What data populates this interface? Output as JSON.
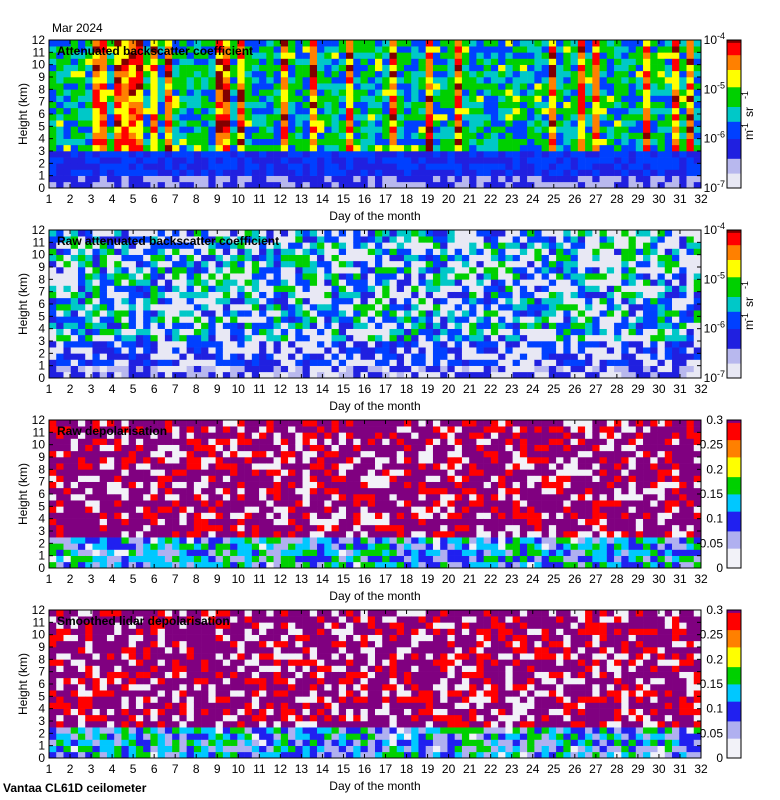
{
  "header": {
    "month": "Mar 2024"
  },
  "footer": {
    "instrument": "Vantaa CL61D ceilometer"
  },
  "chart_data": [
    {
      "type": "heatmap",
      "title": "Attenuated backscatter coefficient",
      "xlabel": "Day of the month",
      "ylabel": "Height (km)",
      "xlim": [
        1,
        32
      ],
      "ylim": [
        0,
        12
      ],
      "x_ticks": [
        "1",
        "2",
        "3",
        "4",
        "5",
        "6",
        "7",
        "8",
        "9",
        "10",
        "11",
        "12",
        "13",
        "14",
        "15",
        "16",
        "17",
        "18",
        "19",
        "20",
        "21",
        "22",
        "23",
        "24",
        "25",
        "26",
        "27",
        "28",
        "29",
        "30",
        "31",
        "32"
      ],
      "y_ticks": [
        "0",
        "1",
        "2",
        "3",
        "4",
        "5",
        "6",
        "7",
        "8",
        "9",
        "10",
        "11",
        "12"
      ],
      "colorbar": {
        "scale": "log",
        "range": [
          1e-07,
          0.0001
        ],
        "tick_mantissa": [
          "10",
          "10",
          "10",
          "10"
        ],
        "tick_exponent": [
          "-7",
          "-6",
          "-5",
          "-4"
        ],
        "unit_base": [
          "m",
          "sr"
        ],
        "unit_exp": [
          "-1",
          "-1"
        ],
        "palette": "jet"
      }
    },
    {
      "type": "heatmap",
      "title": "Raw attenuated backscatter coefficient",
      "xlabel": "Day of the month",
      "ylabel": "Height (km)",
      "xlim": [
        1,
        32
      ],
      "ylim": [
        0,
        12
      ],
      "x_ticks": [
        "1",
        "2",
        "3",
        "4",
        "5",
        "6",
        "7",
        "8",
        "9",
        "10",
        "11",
        "12",
        "13",
        "14",
        "15",
        "16",
        "17",
        "18",
        "19",
        "20",
        "21",
        "22",
        "23",
        "24",
        "25",
        "26",
        "27",
        "28",
        "29",
        "30",
        "31",
        "32"
      ],
      "y_ticks": [
        "0",
        "1",
        "2",
        "3",
        "4",
        "5",
        "6",
        "7",
        "8",
        "9",
        "10",
        "11",
        "12"
      ],
      "colorbar": {
        "scale": "log",
        "range": [
          1e-07,
          0.0001
        ],
        "tick_mantissa": [
          "10",
          "10",
          "10",
          "10"
        ],
        "tick_exponent": [
          "-7",
          "-6",
          "-5",
          "-4"
        ],
        "unit_base": [
          "m",
          "sr"
        ],
        "unit_exp": [
          "-1",
          "-1"
        ],
        "palette": "jet"
      }
    },
    {
      "type": "heatmap",
      "title": "Raw depolarisation",
      "xlabel": "Day of the month",
      "ylabel": "Height (km)",
      "xlim": [
        1,
        32
      ],
      "ylim": [
        0,
        12
      ],
      "x_ticks": [
        "1",
        "2",
        "3",
        "4",
        "5",
        "6",
        "7",
        "8",
        "9",
        "10",
        "11",
        "12",
        "13",
        "14",
        "15",
        "16",
        "17",
        "18",
        "19",
        "20",
        "21",
        "22",
        "23",
        "24",
        "25",
        "26",
        "27",
        "28",
        "29",
        "30",
        "31",
        "32"
      ],
      "y_ticks": [
        "0",
        "1",
        "2",
        "3",
        "4",
        "5",
        "6",
        "7",
        "8",
        "9",
        "10",
        "11",
        "12"
      ],
      "colorbar": {
        "scale": "linear",
        "range": [
          0,
          0.3
        ],
        "ticks": [
          "0",
          "0.05",
          "0.1",
          "0.15",
          "0.2",
          "0.25",
          "0.3"
        ],
        "palette": "jet-purple"
      }
    },
    {
      "type": "heatmap",
      "title": "Smoothed lidar depolarisation",
      "xlabel": "Day of the month",
      "ylabel": "Height (km)",
      "xlim": [
        1,
        32
      ],
      "ylim": [
        0,
        12
      ],
      "x_ticks": [
        "1",
        "2",
        "3",
        "4",
        "5",
        "6",
        "7",
        "8",
        "9",
        "10",
        "11",
        "12",
        "13",
        "14",
        "15",
        "16",
        "17",
        "18",
        "19",
        "20",
        "21",
        "22",
        "23",
        "24",
        "25",
        "26",
        "27",
        "28",
        "29",
        "30",
        "31",
        "32"
      ],
      "y_ticks": [
        "0",
        "1",
        "2",
        "3",
        "4",
        "5",
        "6",
        "7",
        "8",
        "9",
        "10",
        "11",
        "12"
      ],
      "colorbar": {
        "scale": "linear",
        "range": [
          0,
          0.3
        ],
        "ticks": [
          "0",
          "0.05",
          "0.1",
          "0.15",
          "0.2",
          "0.25",
          "0.3"
        ],
        "palette": "jet-purple"
      }
    }
  ]
}
